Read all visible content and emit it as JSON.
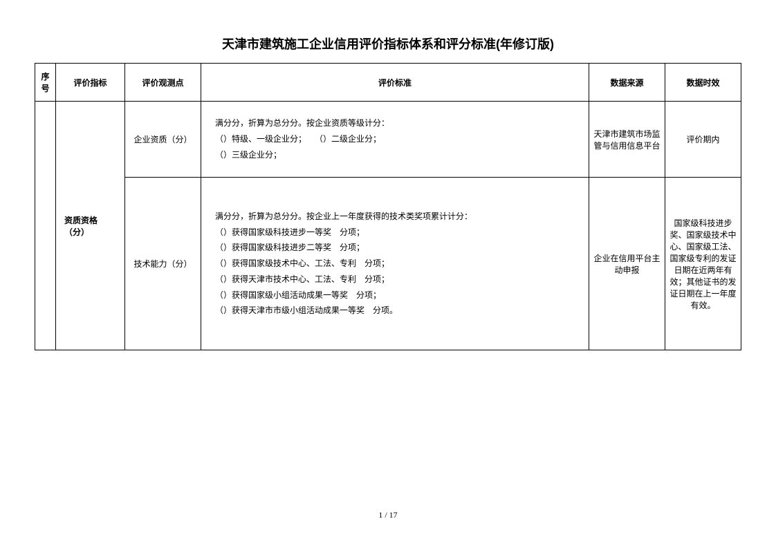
{
  "title": "天津市建筑施工企业信用评价指标体系和评分标准(年修订版)",
  "headers": {
    "seq": "序号",
    "indicator": "评价指标",
    "observation": "评价观测点",
    "standard": "评价标准",
    "source": "数据来源",
    "validity": "数据时效"
  },
  "rows": [
    {
      "seq": "",
      "indicator": "资质资格（分）",
      "observation": "企业资质（分）",
      "standard": "满分分，折算为总分分。按企业资质等级计分：\n（）特级、一级企业分；　　（）二级企业分；\n（）三级企业分；",
      "source": "天津市建筑市场监管与信用信息平台",
      "validity": "评价期内"
    },
    {
      "observation": "技术能力（分）",
      "standard": "满分分，折算为总分分。按企业上一年度获得的技术类奖项累计计分：\n（）获得国家级科技进步一等奖　分项；\n（）获得国家级科技进步二等奖　分项；\n（）获得国家级技术中心、工法、专利　分项；\n（）获得天津市技术中心、工法、专利　分项；\n（）获得国家级小组活动成果一等奖　分项；\n（）获得天津市市级小组活动成果一等奖　分项。",
      "source": "企业在信用平台主动申报",
      "validity": "国家级科技进步奖、国家级技术中心、国家级工法、国家级专利的发证日期在近两年有效；其他证书的发证日期在上一年度有效。"
    }
  ],
  "pageNumber": "1 / 17"
}
